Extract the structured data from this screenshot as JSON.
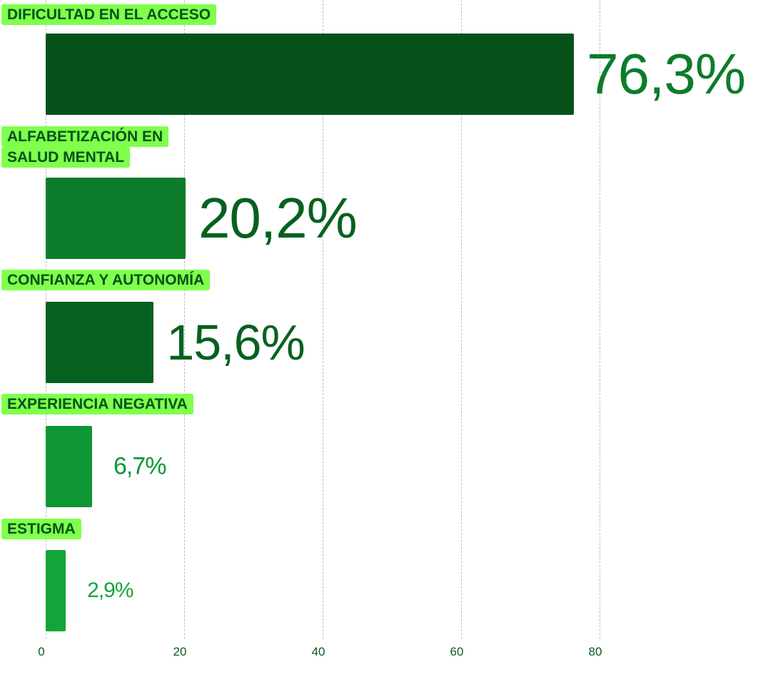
{
  "chart_data": {
    "type": "bar",
    "orientation": "horizontal",
    "categories": [
      "DIFICULTAD EN EL ACCESO",
      "ALFABETIZACIÓN EN SALUD MENTAL",
      "CONFIANZA Y AUTONOMÍA",
      "EXPERIENCIA NEGATIVA",
      "ESTIGMA"
    ],
    "category_lines": [
      [
        "DIFICULTAD EN EL ACCESO"
      ],
      [
        "ALFABETIZACIÓN EN",
        "SALUD MENTAL"
      ],
      [
        "CONFIANZA Y AUTONOMÍA"
      ],
      [
        "EXPERIENCIA NEGATIVA"
      ],
      [
        "ESTIGMA"
      ]
    ],
    "values": [
      76.3,
      20.2,
      15.6,
      6.7,
      2.9
    ],
    "value_labels": [
      "76,3%",
      "20,2%",
      "15,6%",
      "6,7%",
      "2,9%"
    ],
    "bar_colors": [
      "#04521a",
      "#0c7c2a",
      "#05611f",
      "#0e9634",
      "#13a53a"
    ],
    "label_colors": [
      "#0c7c2a",
      "#05611f",
      "#05611f",
      "#0e9634",
      "#13a53a"
    ],
    "xlim": [
      0,
      100
    ],
    "xticks": [
      0,
      20,
      40,
      60,
      80
    ],
    "xtick_labels": [
      "0",
      "20",
      "40",
      "60",
      "80"
    ],
    "grid": true,
    "title": "",
    "xlabel": "",
    "ylabel": ""
  },
  "colors": {
    "label_bg": "#80ff4c",
    "label_text": "#04521a"
  }
}
